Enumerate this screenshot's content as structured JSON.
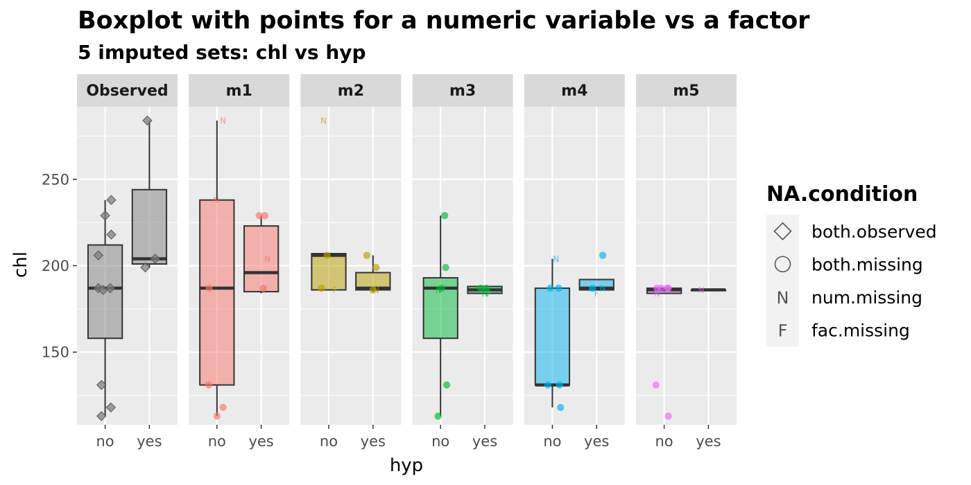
{
  "chart_data": {
    "type": "boxplot",
    "title": "Boxplot with points for a numeric variable vs a factor",
    "subtitle": "5  imputed sets:  chl vs hyp",
    "xlabel": "hyp",
    "ylabel": "chl",
    "categories": [
      "no",
      "yes"
    ],
    "ylim": [
      108,
      292
    ],
    "yticks": [
      150,
      200,
      250
    ],
    "grid": true,
    "legend": {
      "title": "NA.condition",
      "placement": "right",
      "entries": [
        {
          "label": "both.observed",
          "symbol": "diamond"
        },
        {
          "label": "both.missing",
          "symbol": "circle"
        },
        {
          "label": "num.missing",
          "symbol": "N"
        },
        {
          "label": "fac.missing",
          "symbol": "F"
        }
      ]
    },
    "panels": [
      {
        "name": "Observed",
        "color": "#808080",
        "boxes": [
          {
            "category": "no",
            "min": 113,
            "q1": 158,
            "median": 187,
            "q3": 212,
            "max": 238
          },
          {
            "category": "yes",
            "min": 199,
            "q1": 201,
            "median": 204,
            "q3": 244,
            "max": 284
          }
        ],
        "points": [
          {
            "category": "no",
            "jitter": -0.33,
            "y": 206,
            "type": "both.observed"
          },
          {
            "category": "no",
            "jitter": -0.33,
            "y": 187,
            "type": "both.observed"
          },
          {
            "category": "no",
            "jitter": -0.18,
            "y": 131,
            "type": "both.observed"
          },
          {
            "category": "no",
            "jitter": -0.18,
            "y": 113,
            "type": "both.observed"
          },
          {
            "category": "no",
            "jitter": -0.1,
            "y": 186,
            "type": "both.observed"
          },
          {
            "category": "no",
            "jitter": 0.0,
            "y": 229,
            "type": "both.observed"
          },
          {
            "category": "no",
            "jitter": 0.25,
            "y": 187,
            "type": "both.observed"
          },
          {
            "category": "no",
            "jitter": 0.3,
            "y": 238,
            "type": "both.observed"
          },
          {
            "category": "no",
            "jitter": 0.3,
            "y": 218,
            "type": "both.observed"
          },
          {
            "category": "no",
            "jitter": 0.28,
            "y": 118,
            "type": "both.observed"
          },
          {
            "category": "yes",
            "jitter": -0.1,
            "y": 284,
            "type": "both.observed"
          },
          {
            "category": "yes",
            "jitter": -0.2,
            "y": 199,
            "type": "both.observed"
          },
          {
            "category": "yes",
            "jitter": 0.28,
            "y": 204,
            "type": "both.observed"
          }
        ]
      },
      {
        "name": "m1",
        "color": "#F8766D",
        "boxes": [
          {
            "category": "no",
            "min": 113,
            "q1": 131,
            "median": 187,
            "q3": 238,
            "max": 284
          },
          {
            "category": "yes",
            "min": 184,
            "q1": 185,
            "median": 196,
            "q3": 223,
            "max": 229
          }
        ],
        "points": [
          {
            "category": "no",
            "jitter": -0.4,
            "y": 131,
            "type": "both.missing"
          },
          {
            "category": "no",
            "jitter": -0.38,
            "y": 187,
            "type": "both.missing"
          },
          {
            "category": "no",
            "jitter": -0.05,
            "y": 238,
            "type": "num.missing"
          },
          {
            "category": "no",
            "jitter": 0.0,
            "y": 113,
            "type": "both.missing"
          },
          {
            "category": "no",
            "jitter": 0.3,
            "y": 118,
            "type": "both.missing"
          },
          {
            "category": "no",
            "jitter": 0.3,
            "y": 284,
            "type": "num.missing"
          },
          {
            "category": "yes",
            "jitter": -0.1,
            "y": 229,
            "type": "both.missing"
          },
          {
            "category": "yes",
            "jitter": 0.18,
            "y": 229,
            "type": "both.missing"
          },
          {
            "category": "yes",
            "jitter": 0.1,
            "y": 187,
            "type": "both.missing"
          },
          {
            "category": "yes",
            "jitter": 0.3,
            "y": 204,
            "type": "num.missing"
          },
          {
            "category": "yes",
            "jitter": 0.2,
            "y": 186,
            "type": "fac.missing"
          }
        ]
      },
      {
        "name": "m2",
        "color": "#B79F00",
        "boxes": [
          {
            "category": "no",
            "min": 186,
            "q1": 186,
            "median": 206,
            "q3": 207,
            "max": 207
          },
          {
            "category": "yes",
            "min": 185,
            "q1": 186,
            "median": 187,
            "q3": 196,
            "max": 206
          }
        ],
        "points": [
          {
            "category": "no",
            "jitter": -0.35,
            "y": 187,
            "type": "both.missing"
          },
          {
            "category": "no",
            "jitter": -0.25,
            "y": 284,
            "type": "num.missing"
          },
          {
            "category": "no",
            "jitter": -0.08,
            "y": 206,
            "type": "both.missing"
          },
          {
            "category": "no",
            "jitter": 0.3,
            "y": 186,
            "type": "fac.missing"
          },
          {
            "category": "yes",
            "jitter": -0.3,
            "y": 206,
            "type": "both.missing"
          },
          {
            "category": "yes",
            "jitter": 0.15,
            "y": 199,
            "type": "both.missing"
          },
          {
            "category": "yes",
            "jitter": 0.0,
            "y": 186,
            "type": "both.missing"
          },
          {
            "category": "yes",
            "jitter": 0.16,
            "y": 186,
            "type": "num.missing"
          }
        ]
      },
      {
        "name": "m3",
        "color": "#00BA38",
        "boxes": [
          {
            "category": "no",
            "min": 113,
            "q1": 158,
            "median": 187,
            "q3": 193,
            "max": 229
          },
          {
            "category": "yes",
            "min": 184,
            "q1": 184,
            "median": 186,
            "q3": 188,
            "max": 188
          }
        ],
        "points": [
          {
            "category": "no",
            "jitter": 0.2,
            "y": 229,
            "type": "both.missing"
          },
          {
            "category": "no",
            "jitter": 0.25,
            "y": 199,
            "type": "both.missing"
          },
          {
            "category": "no",
            "jitter": 0.05,
            "y": 187,
            "type": "both.missing"
          },
          {
            "category": "no",
            "jitter": -0.1,
            "y": 186,
            "type": "num.missing"
          },
          {
            "category": "no",
            "jitter": 0.3,
            "y": 131,
            "type": "both.missing"
          },
          {
            "category": "no",
            "jitter": -0.12,
            "y": 113,
            "type": "both.missing"
          },
          {
            "category": "yes",
            "jitter": -0.2,
            "y": 187,
            "type": "both.missing"
          },
          {
            "category": "yes",
            "jitter": 0.08,
            "y": 187,
            "type": "both.missing"
          },
          {
            "category": "yes",
            "jitter": 0.0,
            "y": 184,
            "type": "num.missing"
          },
          {
            "category": "yes",
            "jitter": 0.2,
            "y": 184,
            "type": "fac.missing"
          }
        ]
      },
      {
        "name": "m4",
        "color": "#00B4EF",
        "boxes": [
          {
            "category": "no",
            "min": 118,
            "q1": 131,
            "median": 131,
            "q3": 187,
            "max": 204
          },
          {
            "category": "yes",
            "min": 186,
            "q1": 186,
            "median": 187,
            "q3": 192,
            "max": 192
          }
        ],
        "points": [
          {
            "category": "no",
            "jitter": -0.22,
            "y": 131,
            "type": "both.missing"
          },
          {
            "category": "no",
            "jitter": -0.1,
            "y": 187,
            "type": "both.missing"
          },
          {
            "category": "no",
            "jitter": 0.3,
            "y": 187,
            "type": "both.missing"
          },
          {
            "category": "no",
            "jitter": 0.35,
            "y": 131,
            "type": "both.missing"
          },
          {
            "category": "no",
            "jitter": 0.4,
            "y": 118,
            "type": "both.missing"
          },
          {
            "category": "no",
            "jitter": 0.18,
            "y": 204,
            "type": "num.missing"
          },
          {
            "category": "yes",
            "jitter": -0.2,
            "y": 187,
            "type": "both.missing"
          },
          {
            "category": "yes",
            "jitter": 0.3,
            "y": 206,
            "type": "both.missing"
          },
          {
            "category": "yes",
            "jitter": 0.0,
            "y": 184,
            "type": "fac.missing"
          },
          {
            "category": "yes",
            "jitter": 0.3,
            "y": 187,
            "type": "num.missing"
          }
        ]
      },
      {
        "name": "m5",
        "color": "#E76BF3",
        "boxes": [
          {
            "category": "no",
            "min": 184,
            "q1": 184,
            "median": 186,
            "q3": 187,
            "max": 187
          },
          {
            "category": "yes",
            "min": 186,
            "q1": 186,
            "median": 186,
            "q3": 186,
            "max": 186
          }
        ],
        "points": [
          {
            "category": "no",
            "jitter": -0.35,
            "y": 187,
            "type": "both.missing"
          },
          {
            "category": "no",
            "jitter": -0.15,
            "y": 187,
            "type": "both.missing"
          },
          {
            "category": "no",
            "jitter": 0.15,
            "y": 187,
            "type": "both.missing"
          },
          {
            "category": "no",
            "jitter": 0.2,
            "y": 187,
            "type": "both.missing"
          },
          {
            "category": "no",
            "jitter": -0.4,
            "y": 131,
            "type": "both.missing"
          },
          {
            "category": "no",
            "jitter": 0.2,
            "y": 113,
            "type": "both.missing"
          },
          {
            "category": "no",
            "jitter": -0.35,
            "y": 184,
            "type": "num.missing"
          },
          {
            "category": "yes",
            "jitter": -0.35,
            "y": 186,
            "type": "num.missing"
          }
        ]
      }
    ]
  }
}
